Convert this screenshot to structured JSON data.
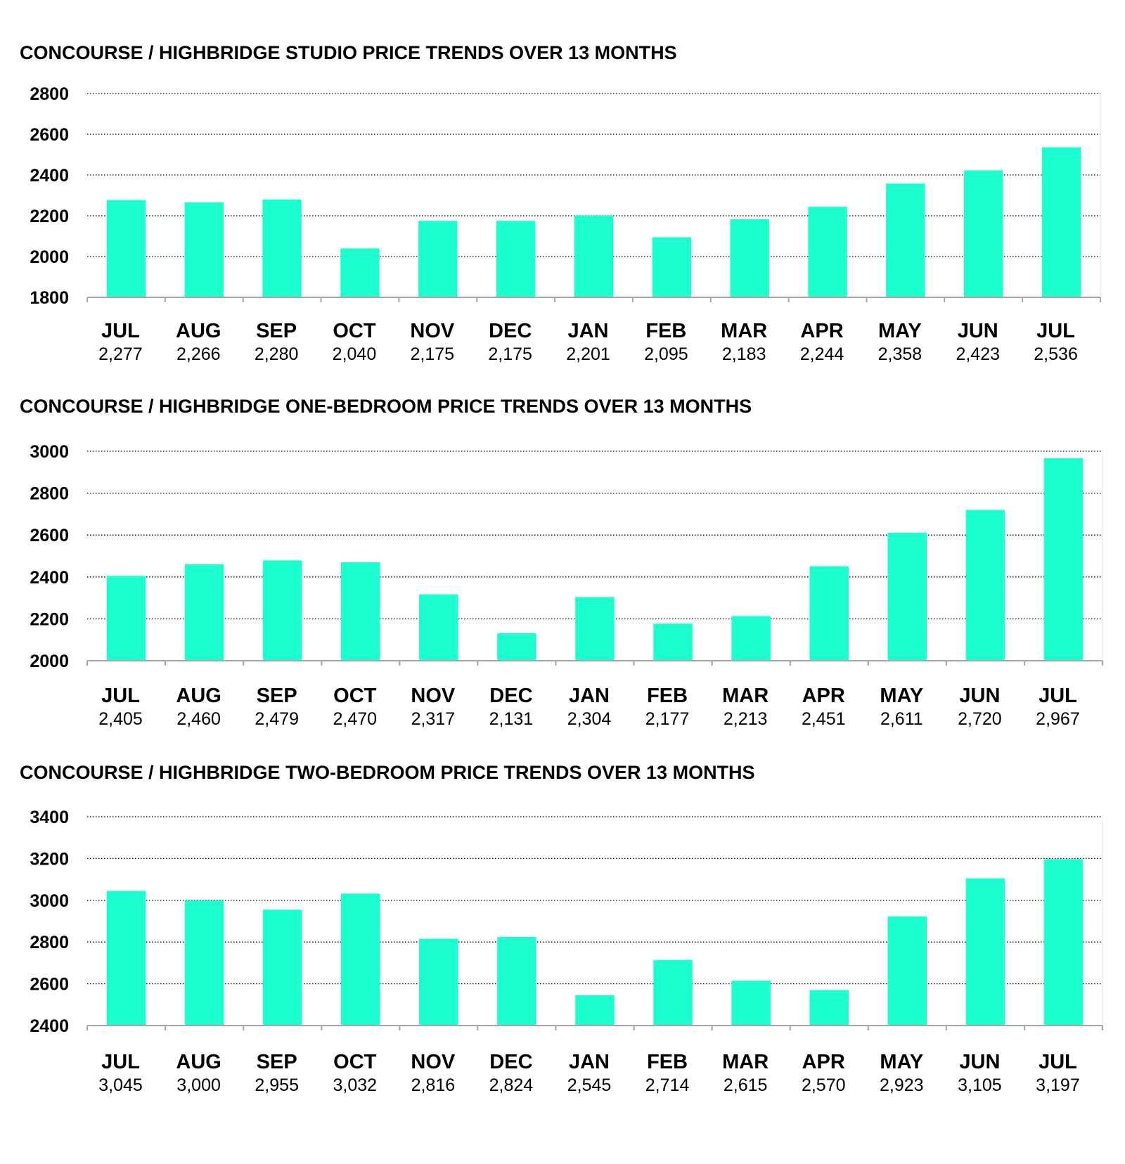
{
  "colors": {
    "bar": "#1EFFD0",
    "grid": "#000000",
    "axis": "#a6a6a6"
  },
  "chart_data": [
    {
      "type": "bar",
      "title": "CONCOURSE / HIGHBRIDGE STUDIO PRICE TRENDS OVER 13 MONTHS",
      "categories": [
        "JUL",
        "AUG",
        "SEP",
        "OCT",
        "NOV",
        "DEC",
        "JAN",
        "FEB",
        "MAR",
        "APR",
        "MAY",
        "JUN",
        "JUL"
      ],
      "value_labels": [
        "2,277",
        "2,266",
        "2,280",
        "2,040",
        "2,175",
        "2,175",
        "2,201",
        "2,095",
        "2,183",
        "2,244",
        "2,358",
        "2,423",
        "2,536"
      ],
      "values": [
        2277,
        2266,
        2280,
        2040,
        2175,
        2175,
        2201,
        2095,
        2183,
        2244,
        2358,
        2423,
        2536
      ],
      "yticks": [
        "2800",
        "2600",
        "2400",
        "2200",
        "2000",
        "1800"
      ],
      "ylim": [
        1800,
        2800
      ],
      "grid": true
    },
    {
      "type": "bar",
      "title": "CONCOURSE / HIGHBRIDGE ONE-BEDROOM PRICE TRENDS OVER 13 MONTHS",
      "categories": [
        "JUL",
        "AUG",
        "SEP",
        "OCT",
        "NOV",
        "DEC",
        "JAN",
        "FEB",
        "MAR",
        "APR",
        "MAY",
        "JUN",
        "JUL"
      ],
      "value_labels": [
        "2,405",
        "2,460",
        "2,479",
        "2,470",
        "2,317",
        "2,131",
        "2,304",
        "2,177",
        "2,213",
        "2,451",
        "2,611",
        "2,720",
        "2,967"
      ],
      "values": [
        2405,
        2460,
        2479,
        2470,
        2317,
        2131,
        2304,
        2177,
        2213,
        2451,
        2611,
        2720,
        2967
      ],
      "yticks": [
        "3000",
        "2800",
        "2600",
        "2400",
        "2200",
        "2000"
      ],
      "ylim": [
        2000,
        3000
      ],
      "grid": true
    },
    {
      "type": "bar",
      "title": "CONCOURSE / HIGHBRIDGE TWO-BEDROOM PRICE TRENDS OVER 13 MONTHS",
      "categories": [
        "JUL",
        "AUG",
        "SEP",
        "OCT",
        "NOV",
        "DEC",
        "JAN",
        "FEB",
        "MAR",
        "APR",
        "MAY",
        "JUN",
        "JUL"
      ],
      "value_labels": [
        "3,045",
        "3,000",
        "2,955",
        "3,032",
        "2,816",
        "2,824",
        "2,545",
        "2,714",
        "2,615",
        "2,570",
        "2,923",
        "3,105",
        "3,197"
      ],
      "values": [
        3045,
        3000,
        2955,
        3032,
        2816,
        2824,
        2545,
        2714,
        2615,
        2570,
        2923,
        3105,
        3197
      ],
      "yticks": [
        "3400",
        "3200",
        "3000",
        "2800",
        "2600",
        "2400"
      ],
      "ylim": [
        2400,
        3400
      ],
      "grid": true
    }
  ]
}
